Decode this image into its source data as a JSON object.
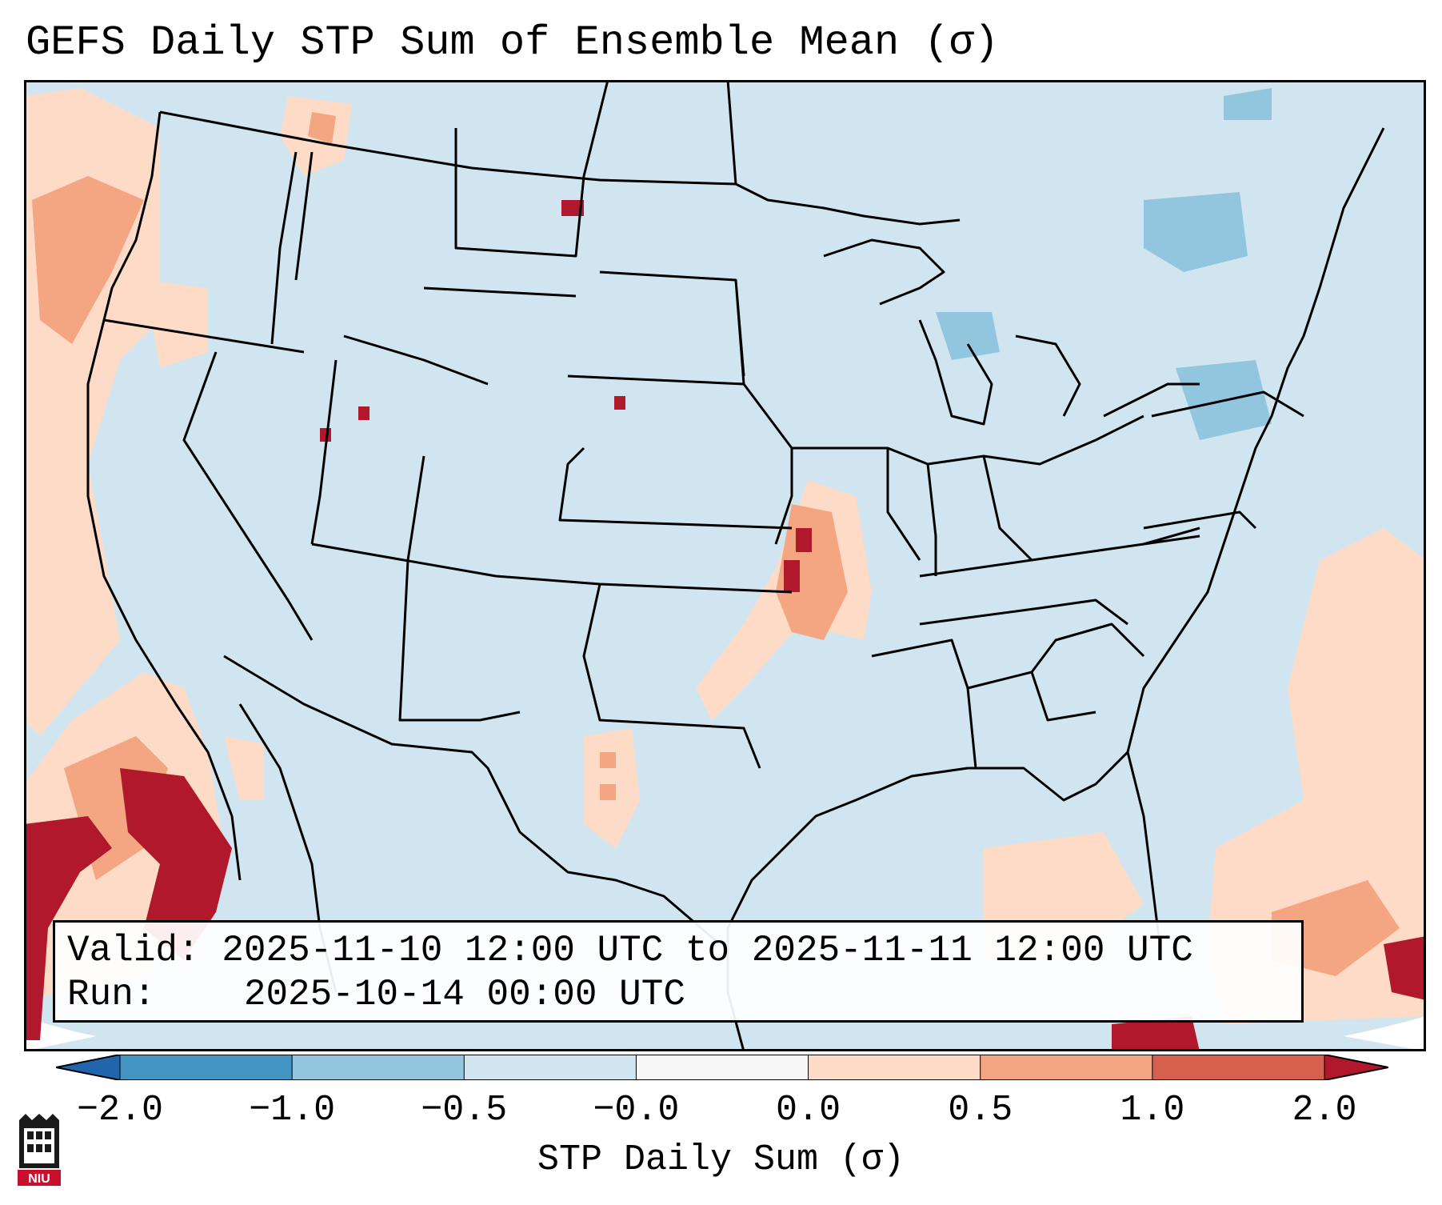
{
  "title": "GEFS Daily STP Sum of Ensemble Mean (σ)",
  "info": {
    "valid_label": "Valid:",
    "valid_value": "2025-11-10 12:00 UTC to 2025-11-11 12:00 UTC",
    "run_label": "Run:",
    "run_value": "2025-10-14 00:00 UTC"
  },
  "colorbar": {
    "label": "STP Daily Sum (σ)",
    "ticks": [
      "−2.0",
      "−1.0",
      "−0.5",
      "−0.0",
      "0.0",
      "0.5",
      "1.0",
      "2.0"
    ],
    "bins": [
      {
        "range": "< -2.0",
        "color": "#2166ac"
      },
      {
        "range": "-2.0 to -1.0",
        "color": "#4393c3"
      },
      {
        "range": "-1.0 to -0.5",
        "color": "#92c5de"
      },
      {
        "range": "-0.5 to -0.0",
        "color": "#d1e5f0"
      },
      {
        "range": "-0.0 to 0.0",
        "color": "#f7f7f7"
      },
      {
        "range": "0.0 to 0.5",
        "color": "#fddbc7"
      },
      {
        "range": "0.5 to 1.0",
        "color": "#f4a582"
      },
      {
        "range": "1.0 to 2.0",
        "color": "#d6604d"
      },
      {
        "range": "> 2.0",
        "color": "#b2182b"
      }
    ]
  },
  "map": {
    "projection": "lambert-conformal",
    "region": "CONUS",
    "background_color": "#d1e5f0",
    "line_color": "#000000"
  },
  "logo": {
    "text": "NIU",
    "color": "#c8102e"
  }
}
